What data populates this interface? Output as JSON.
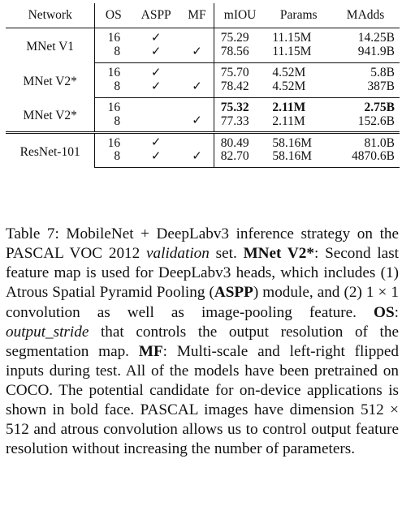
{
  "table": {
    "headers": [
      "Network",
      "OS",
      "ASPP",
      "MF",
      "mIOU",
      "Params",
      "MAdds"
    ],
    "check_glyph": "✓",
    "groups": [
      {
        "network": "MNet V1",
        "rows": [
          {
            "os": "16",
            "aspp": true,
            "mf": false,
            "miou": "75.29",
            "params": "11.15M",
            "madds": "14.25B",
            "bold": false
          },
          {
            "os": "8",
            "aspp": true,
            "mf": true,
            "miou": "78.56",
            "params": "11.15M",
            "madds": "941.9B",
            "bold": false
          }
        ]
      },
      {
        "network": "MNet V2*",
        "rows": [
          {
            "os": "16",
            "aspp": true,
            "mf": false,
            "miou": "75.70",
            "params": "4.52M",
            "madds": "5.8B",
            "bold": false
          },
          {
            "os": "8",
            "aspp": true,
            "mf": true,
            "miou": "78.42",
            "params": "4.52M",
            "madds": "387B",
            "bold": false
          }
        ]
      },
      {
        "network": "MNet V2*",
        "rows": [
          {
            "os": "16",
            "aspp": false,
            "mf": false,
            "miou": "75.32",
            "params": "2.11M",
            "madds": "2.75B",
            "bold": true
          },
          {
            "os": "8",
            "aspp": false,
            "mf": true,
            "miou": "77.33",
            "params": "2.11M",
            "madds": "152.6B",
            "bold": false
          }
        ]
      },
      {
        "network": "ResNet-101",
        "rows": [
          {
            "os": "16",
            "aspp": true,
            "mf": false,
            "miou": "80.49",
            "params": "58.16M",
            "madds": "81.0B",
            "bold": false
          },
          {
            "os": "8",
            "aspp": true,
            "mf": true,
            "miou": "82.70",
            "params": "58.16M",
            "madds": "4870.6B",
            "bold": false
          }
        ]
      }
    ]
  },
  "caption": {
    "label": "Table 7:",
    "t1": " MobileNet + DeepLabv3 inference strategy on the PASCAL VOC 2012 ",
    "t1_italic": "validation",
    "t1_end": " set. ",
    "mnet_term": "MNet V2*",
    "t2": ": Second last feature map is used for DeepLabv3 heads, which includes (1) Atrous Spatial Pyramid Pooling (",
    "aspp_term": "ASPP",
    "t3": ") module, and (2) 1 × 1 convolution as well as image-pooling feature. ",
    "os_term": "OS",
    "t4": ": ",
    "os_italic": "output_stride",
    "t5": " that controls the output resolution of the segmentation map. ",
    "mf_term": "MF",
    "t6": ": Multi-scale and left-right flipped inputs during test. All of the models have been pretrained on COCO. The potential candidate for on-device applications is shown in bold face. PASCAL images have dimension 512 × 512 and atrous convolution allows us to control output feature resolution without increasing the number of parameters."
  }
}
